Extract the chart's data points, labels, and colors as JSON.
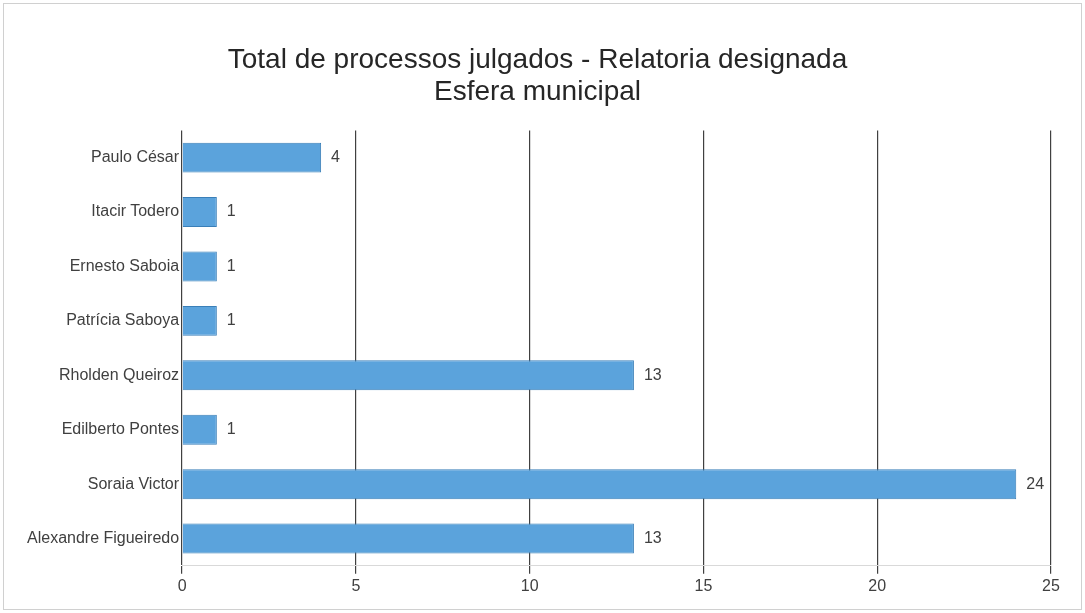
{
  "chart_data": {
    "type": "bar",
    "orientation": "horizontal",
    "title": "Total de processos julgados - Relatoria designada\nEsfera municipal",
    "categories": [
      "Paulo César",
      "Itacir Todero",
      "Ernesto Saboia",
      "Patrícia Saboya",
      "Rholden Queiroz",
      "Edilberto Pontes",
      "Soraia Victor",
      "Alexandre Figueiredo"
    ],
    "values": [
      4,
      1,
      1,
      1,
      13,
      1,
      24,
      13
    ],
    "color": "#5ba3dc",
    "xlim": [
      0,
      25
    ],
    "xticks": [
      0,
      5,
      10,
      15,
      20,
      25
    ],
    "grid": "x",
    "legend": false,
    "data_labels": true
  }
}
